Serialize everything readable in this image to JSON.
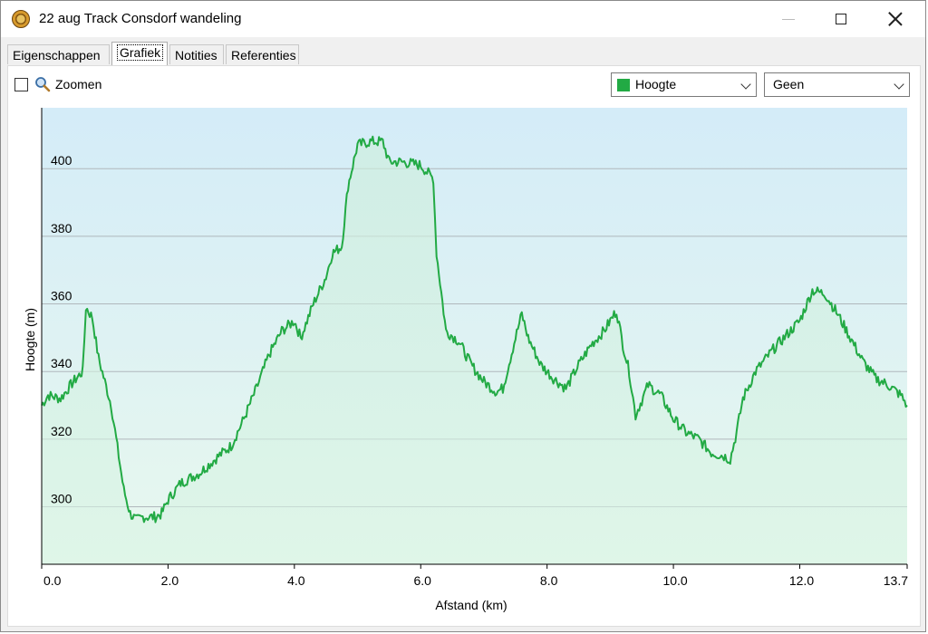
{
  "window": {
    "title": "22 aug Track Consdorf wandeling"
  },
  "tabs": [
    {
      "label": "Eigenschappen"
    },
    {
      "label": "Grafiek",
      "active": true
    },
    {
      "label": "Notities"
    },
    {
      "label": "Referenties"
    }
  ],
  "toolbar": {
    "zoom_label": "Zoomen",
    "zoom_checked": false,
    "series_select": "Hoogte",
    "series_color": "#22aa44",
    "secondary_select": "Geen"
  },
  "chart_data": {
    "type": "area",
    "xlabel": "Afstand  (km)",
    "ylabel": "Hoogte (m)",
    "xlim": [
      0,
      13.7
    ],
    "ylim": [
      283,
      418
    ],
    "x_ticks": [
      "0.0",
      "2.0",
      "4.0",
      "6.0",
      "8.0",
      "10.0",
      "12.0",
      "13.7"
    ],
    "y_ticks": [
      "300",
      "320",
      "340",
      "360",
      "380",
      "400"
    ],
    "grid": true,
    "series": [
      {
        "color": "#22aa44",
        "x": [
          0.0,
          0.1,
          0.3,
          0.5,
          0.65,
          0.7,
          0.8,
          0.9,
          1.1,
          1.3,
          1.4,
          1.5,
          1.6,
          1.8,
          1.9,
          2.0,
          2.2,
          2.5,
          2.8,
          3.0,
          3.2,
          3.4,
          3.6,
          3.8,
          4.0,
          4.1,
          4.3,
          4.5,
          4.6,
          4.75,
          4.85,
          5.0,
          5.2,
          5.4,
          5.5,
          5.7,
          6.0,
          6.2,
          6.25,
          6.4,
          6.6,
          6.8,
          7.0,
          7.2,
          7.3,
          7.5,
          7.6,
          7.7,
          7.9,
          8.1,
          8.3,
          8.5,
          8.7,
          8.9,
          9.0,
          9.1,
          9.2,
          9.3,
          9.4,
          9.6,
          9.8,
          10.0,
          10.2,
          10.4,
          10.6,
          10.8,
          10.9,
          11.0,
          11.1,
          11.3,
          11.6,
          11.8,
          12.0,
          12.2,
          12.4,
          12.6,
          12.8,
          13.0,
          13.2,
          13.4,
          13.6,
          13.7
        ],
        "values": [
          330,
          333,
          332,
          337,
          340,
          359,
          356,
          344,
          330,
          305,
          298,
          296,
          297,
          297,
          298,
          302,
          307,
          310,
          315,
          318,
          326,
          335,
          345,
          352,
          355,
          350,
          360,
          368,
          375,
          377,
          395,
          407,
          408,
          408,
          402,
          402,
          401,
          397,
          375,
          352,
          349,
          342,
          337,
          334,
          335,
          350,
          357,
          350,
          342,
          338,
          335,
          342,
          348,
          352,
          355,
          358,
          348,
          340,
          327,
          336,
          333,
          326,
          322,
          320,
          316,
          315,
          314,
          322,
          332,
          340,
          347,
          351,
          355,
          364,
          363,
          357,
          350,
          343,
          338,
          336,
          333,
          330
        ]
      }
    ]
  }
}
